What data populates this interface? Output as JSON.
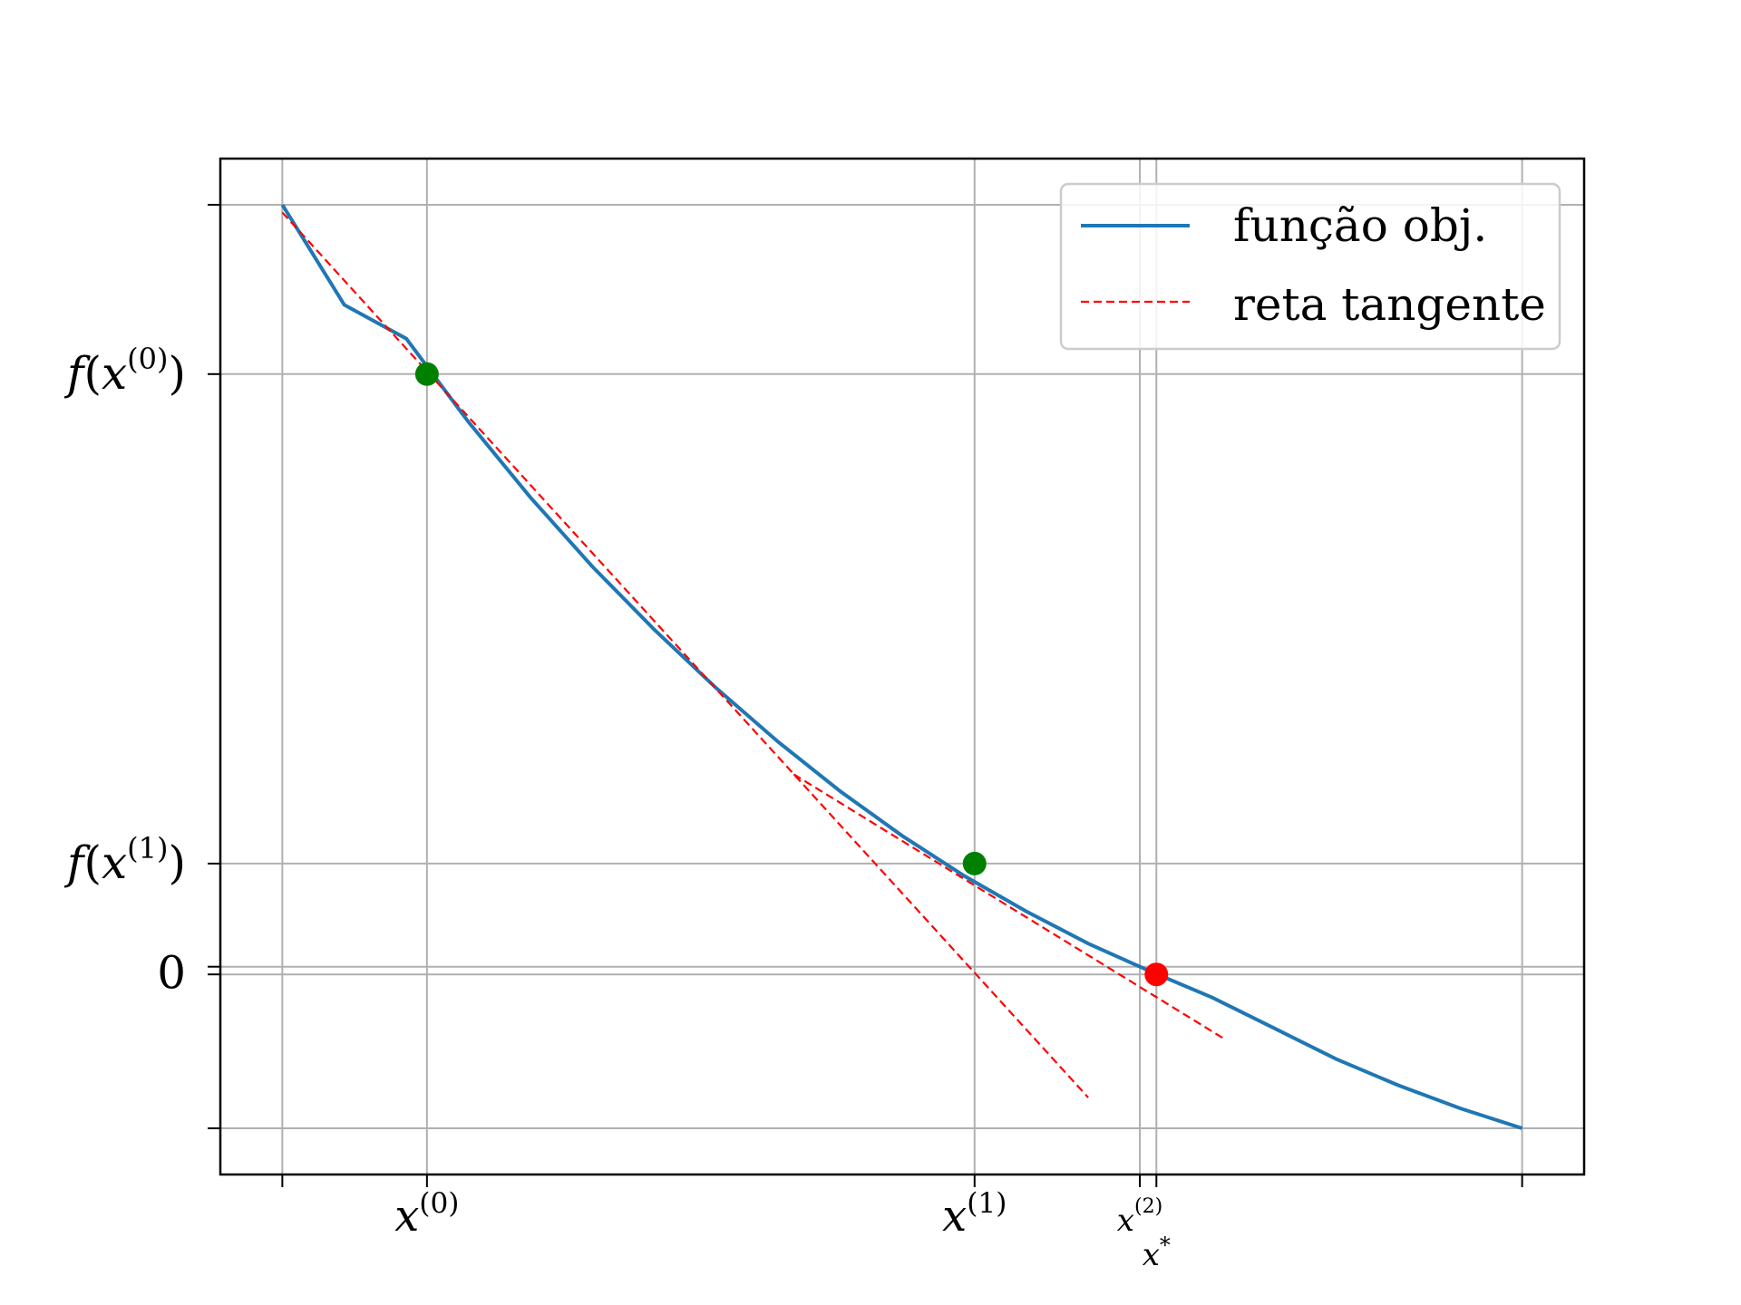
{
  "chart_data": {
    "type": "line",
    "title": "",
    "xlabel": "",
    "ylabel": "",
    "xlim": [
      -0.1,
      2.1
    ],
    "ylim": [
      -1.3,
      5.3
    ],
    "grid": true,
    "legend_placement": "top-right",
    "x_ticks": [
      {
        "value": 0.0,
        "label": ""
      },
      {
        "value": 0.2333,
        "label": "x",
        "sup": "(0)"
      },
      {
        "value": 1.1167,
        "label": "x",
        "sup": "(1)"
      },
      {
        "value": 1.3833,
        "label": "x",
        "sup": "(2)"
      },
      {
        "value": 1.41,
        "label": "x*",
        "sup": ""
      },
      {
        "value": 2.0,
        "label": ""
      }
    ],
    "y_ticks": [
      {
        "value": 5.0,
        "label": ""
      },
      {
        "value": 3.9,
        "label": "f(x",
        "sup": "(0)",
        "suffix": ")"
      },
      {
        "value": 0.72,
        "label": "f(x",
        "sup": "(1)",
        "suffix": ")"
      },
      {
        "value": 0.05,
        "label": "0",
        "sup": "",
        "suffix": ""
      },
      {
        "value": 0.0,
        "label": "",
        "sup": "",
        "suffix": ""
      },
      {
        "value": -1.0,
        "label": "",
        "sup": "",
        "suffix": ""
      }
    ],
    "series": [
      {
        "name": "função obj.",
        "style": "solid",
        "color": "#1f77b4",
        "x": [
          0.0,
          0.1,
          0.2,
          0.3,
          0.4,
          0.5,
          0.6,
          0.7,
          0.8,
          0.9,
          1.0,
          1.1,
          1.2,
          1.3,
          1.4,
          1.5,
          1.6,
          1.7,
          1.8,
          1.9,
          2.0
        ],
        "y": [
          5.0,
          4.35,
          4.13,
          3.59,
          3.1,
          2.65,
          2.24,
          1.86,
          1.51,
          1.19,
          0.9,
          0.64,
          0.41,
          0.2,
          0.02,
          -0.15,
          -0.35,
          -0.55,
          -0.72,
          -0.87,
          -1.0
        ]
      },
      {
        "name": "reta tangente",
        "style": "dashed",
        "color": "#ff0000",
        "segments": [
          {
            "x": [
              0.0,
              1.3
            ],
            "y": [
              4.95,
              -0.8
            ]
          },
          {
            "x": [
              0.825,
              1.52
            ],
            "y": [
              1.3,
              -0.42
            ]
          }
        ]
      }
    ],
    "points": [
      {
        "x": 0.2333,
        "y": 3.9,
        "color": "#008000"
      },
      {
        "x": 1.1167,
        "y": 0.72,
        "color": "#008000"
      },
      {
        "x": 1.41,
        "y": 0.0,
        "color": "#ff0000"
      }
    ]
  }
}
